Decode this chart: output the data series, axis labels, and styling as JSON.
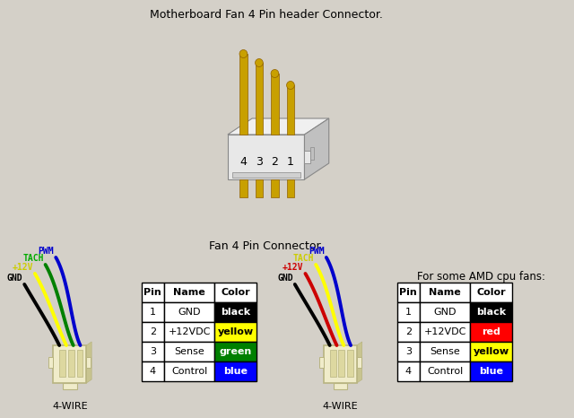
{
  "bg_color": "#d4d0c8",
  "title_top": "Motherboard Fan 4 Pin header Connector.",
  "title_mid": "Fan 4 Pin Connector.",
  "table1_pins": [
    "1",
    "2",
    "3",
    "4"
  ],
  "table1_names": [
    "GND",
    "+12VDC",
    "Sense",
    "Control"
  ],
  "table1_colors": [
    "#000000",
    "#ffff00",
    "#008000",
    "#0000ff"
  ],
  "table1_text_colors": [
    "white",
    "black",
    "white",
    "white"
  ],
  "table1_color_labels": [
    "black",
    "yellow",
    "green",
    "blue"
  ],
  "table2_title": "For some AMD cpu fans:",
  "table2_pins": [
    "1",
    "2",
    "3",
    "4"
  ],
  "table2_names": [
    "GND",
    "+12VDC",
    "Sense",
    "Control"
  ],
  "table2_colors": [
    "#000000",
    "#ff0000",
    "#ffff00",
    "#0000ff"
  ],
  "table2_text_colors": [
    "white",
    "white",
    "black",
    "white"
  ],
  "table2_color_labels": [
    "black",
    "red",
    "yellow",
    "blue"
  ],
  "left_wire_colors": [
    "#000000",
    "#ffff00",
    "#008000",
    "#0000cc"
  ],
  "left_wire_labels": [
    "GND",
    "+12V",
    "TACH",
    "PWM"
  ],
  "left_label_colors": [
    "#000000",
    "#cccc00",
    "#00aa00",
    "#0000cc"
  ],
  "right_wire_colors": [
    "#000000",
    "#cc0000",
    "#ffff00",
    "#0000cc"
  ],
  "right_wire_labels": [
    "GND",
    "+12V",
    "TACH",
    "PWM"
  ],
  "right_label_colors": [
    "#000000",
    "#cc0000",
    "#cccc00",
    "#0000cc"
  ]
}
